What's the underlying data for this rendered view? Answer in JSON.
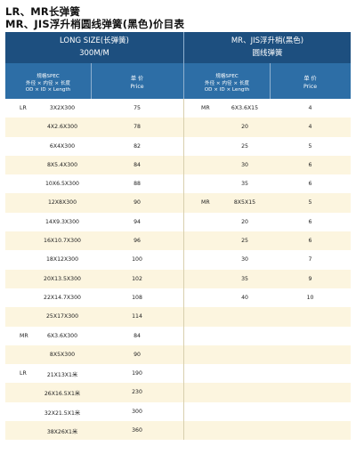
{
  "titles": {
    "line1": "LR、MR长弹簧",
    "line2": "MR、JIS浮升梢圆线弹簧(黑色)价目表"
  },
  "header": {
    "left_line1": "LONG SIZE(长弹簧)",
    "left_line2": "300M/M",
    "right_line1": "MR、JIS浮升梢(黑色)",
    "right_line2": "圆线弹簧"
  },
  "subheader": {
    "spec_line1": "规格SPEC",
    "spec_line2": "外径 × 内径 × 长度",
    "spec_line3": "OD × ID × Length",
    "price_line1": "单 价",
    "price_line2": "Price"
  },
  "colors": {
    "header_dark": "#1d4f7f",
    "header_light": "#2d6ea6",
    "row_stripe": "#fcf5df"
  },
  "rows": [
    {
      "ltag": "LR",
      "lspec": "3X2X300",
      "lprice": "75",
      "rtag": "MR",
      "rspec": "6X3.6X15",
      "rprice": "4"
    },
    {
      "ltag": "",
      "lspec": "4X2.6X300",
      "lprice": "78",
      "rtag": "",
      "rspec": "20",
      "rprice": "4"
    },
    {
      "ltag": "",
      "lspec": "6X4X300",
      "lprice": "82",
      "rtag": "",
      "rspec": "25",
      "rprice": "5"
    },
    {
      "ltag": "",
      "lspec": "8X5.4X300",
      "lprice": "84",
      "rtag": "",
      "rspec": "30",
      "rprice": "6"
    },
    {
      "ltag": "",
      "lspec": "10X6.5X300",
      "lprice": "88",
      "rtag": "",
      "rspec": "35",
      "rprice": "6"
    },
    {
      "ltag": "",
      "lspec": "12X8X300",
      "lprice": "90",
      "rtag": "MR",
      "rspec": "8X5X15",
      "rprice": "5"
    },
    {
      "ltag": "",
      "lspec": "14X9.3X300",
      "lprice": "94",
      "rtag": "",
      "rspec": "20",
      "rprice": "6"
    },
    {
      "ltag": "",
      "lspec": "16X10.7X300",
      "lprice": "96",
      "rtag": "",
      "rspec": "25",
      "rprice": "6"
    },
    {
      "ltag": "",
      "lspec": "18X12X300",
      "lprice": "100",
      "rtag": "",
      "rspec": "30",
      "rprice": "7"
    },
    {
      "ltag": "",
      "lspec": "20X13.5X300",
      "lprice": "102",
      "rtag": "",
      "rspec": "35",
      "rprice": "9"
    },
    {
      "ltag": "",
      "lspec": "22X14.7X300",
      "lprice": "108",
      "rtag": "",
      "rspec": "40",
      "rprice": "10"
    },
    {
      "ltag": "",
      "lspec": "25X17X300",
      "lprice": "114",
      "rtag": "",
      "rspec": "",
      "rprice": ""
    },
    {
      "ltag": "MR",
      "lspec": "6X3.6X300",
      "lprice": "84",
      "rtag": "",
      "rspec": "",
      "rprice": ""
    },
    {
      "ltag": "",
      "lspec": "8X5X300",
      "lprice": "90",
      "rtag": "",
      "rspec": "",
      "rprice": ""
    },
    {
      "ltag": "LR",
      "lspec": "21X13X1米",
      "lprice": "190",
      "rtag": "",
      "rspec": "",
      "rprice": ""
    },
    {
      "ltag": "",
      "lspec": "26X16.5X1米",
      "lprice": "230",
      "rtag": "",
      "rspec": "",
      "rprice": ""
    },
    {
      "ltag": "",
      "lspec": "32X21.5X1米",
      "lprice": "300",
      "rtag": "",
      "rspec": "",
      "rprice": ""
    },
    {
      "ltag": "",
      "lspec": "38X26X1米",
      "lprice": "360",
      "rtag": "",
      "rspec": "",
      "rprice": ""
    }
  ]
}
